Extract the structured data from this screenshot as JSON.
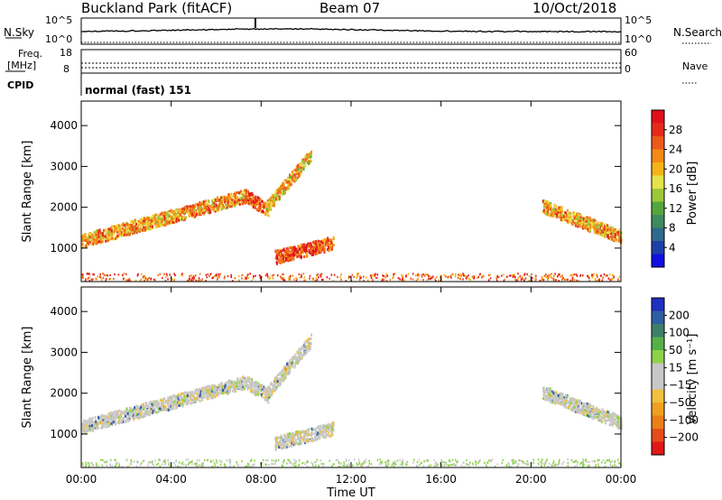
{
  "header": {
    "site": "Buckland Park (fitACF)",
    "beam": "Beam 07",
    "date": "10/Oct/2018"
  },
  "top_panels": {
    "nsky_label": "N.Sky",
    "nsky_ticks": [
      "10^5",
      "10^0"
    ],
    "nsearch_label": "N.Search",
    "nsearch_ticks": [
      "10^5",
      "10^0"
    ],
    "freq_label": "Freq.",
    "freq_unit": "[MHz]",
    "freq_ticks": [
      "18",
      "8"
    ],
    "nave_label": "Nave",
    "nave_ticks": [
      "60",
      "0"
    ],
    "cpid_label": "CPID",
    "cpid_value": "normal (fast) 151"
  },
  "chart_data": [
    {
      "type": "heatmap",
      "name": "power",
      "ylabel": "Slant Range [km]",
      "xlabel": "",
      "x_ticks": [
        "00:00",
        "04:00",
        "08:00",
        "12:00",
        "16:00",
        "20:00",
        "00:00"
      ],
      "xlim_hours": [
        0,
        24
      ],
      "y_ticks": [
        1000,
        2000,
        3000,
        4000
      ],
      "ylim": [
        180,
        4600
      ],
      "colorbar": {
        "label": "Power [dB]",
        "ticks": [
          4,
          8,
          12,
          16,
          20,
          24,
          28
        ],
        "range": [
          0,
          32
        ],
        "colors": [
          "#1010e0",
          "#1e3ea8",
          "#2e6a8c",
          "#3f8a5e",
          "#54a63c",
          "#9cc83a",
          "#e6e24a",
          "#f7b41a",
          "#f38a16",
          "#ec5a1a",
          "#e52a1a",
          "#e0101a"
        ]
      },
      "features": [
        {
          "desc": "main echo band",
          "hour_start": 0.0,
          "hour_end": 7.3,
          "range_start_km": 1200,
          "range_end_km": 2300,
          "power_db": 22
        },
        {
          "desc": "curved arc",
          "hour_start": 7.3,
          "hour_end": 8.3,
          "range_start_km": 2300,
          "range_end_km": 1950,
          "power_db": 26
        },
        {
          "desc": "upper plume",
          "hour_start": 8.2,
          "hour_end": 10.2,
          "range_start_km": 2000,
          "range_end_km": 3300,
          "power_db": 20
        },
        {
          "desc": "lower streak",
          "hour_start": 8.6,
          "hour_end": 11.2,
          "range_start_km": 800,
          "range_end_km": 1150,
          "power_db": 28
        },
        {
          "desc": "evening band",
          "hour_start": 20.5,
          "hour_end": 24.0,
          "range_start_km": 2050,
          "range_end_km": 1300,
          "power_db": 22
        }
      ]
    },
    {
      "type": "heatmap",
      "name": "velocity",
      "ylabel": "Slant Range [km]",
      "xlabel": "Time UT",
      "x_ticks": [
        "00:00",
        "04:00",
        "08:00",
        "12:00",
        "16:00",
        "20:00",
        "00:00"
      ],
      "xlim_hours": [
        0,
        24
      ],
      "y_ticks": [
        1000,
        2000,
        3000,
        4000
      ],
      "ylim": [
        180,
        4600
      ],
      "colorbar": {
        "label": "Velocity [m s⁻¹]",
        "ticks": [
          "200",
          "100",
          "50",
          "15",
          "−15",
          "−50",
          "−100",
          "−200"
        ],
        "colors": [
          "#1f2fbf",
          "#2f5fa3",
          "#3f7f6a",
          "#55b04a",
          "#8fd24a",
          "#c8c8c8",
          "#c8c8c8",
          "#f0c040",
          "#f0a020",
          "#ec7e18",
          "#e54c18",
          "#e01818"
        ]
      }
    }
  ]
}
